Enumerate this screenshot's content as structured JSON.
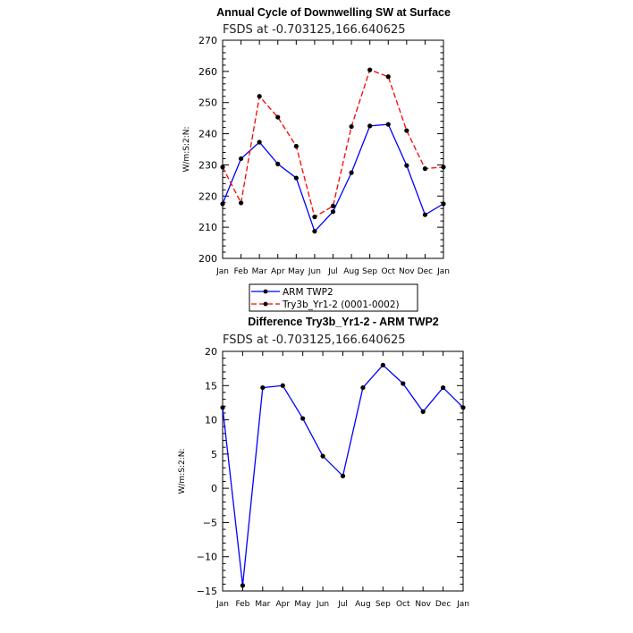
{
  "chart_data": [
    {
      "type": "line",
      "title": "Annual Cycle of Downwelling SW at Surface",
      "subtitle": "FSDS at -0.703125,166.640625",
      "xlabel": "",
      "ylabel": "W/m:S:2:N:",
      "ylim": [
        200,
        270
      ],
      "yticks": [
        200,
        210,
        220,
        230,
        240,
        250,
        260,
        270
      ],
      "categories": [
        "Jan",
        "Feb",
        "Mar",
        "Apr",
        "May",
        "Jun",
        "Jul",
        "Aug",
        "Sep",
        "Oct",
        "Nov",
        "Dec",
        "Jan"
      ],
      "series": [
        {
          "name": "ARM TWP2",
          "color": "#0000ff",
          "dash": "solid",
          "values": [
            217.5,
            232.0,
            237.3,
            230.3,
            225.8,
            208.7,
            215.0,
            227.5,
            242.5,
            243.0,
            229.8,
            214.0,
            217.5
          ]
        },
        {
          "name": "Try3b_Yr1-2 (0001-0002)",
          "color": "#ff0000",
          "dash": "dashed",
          "values": [
            229.3,
            217.8,
            252.0,
            245.3,
            236.0,
            213.3,
            216.8,
            242.3,
            260.5,
            258.3,
            241.0,
            228.8,
            229.3
          ]
        }
      ],
      "legend": {
        "position": "bottom-left",
        "entries": [
          "ARM TWP2",
          "Try3b_Yr1-2 (0001-0002)"
        ]
      }
    },
    {
      "type": "line",
      "title": "Difference Try3b_Yr1-2 - ARM TWP2",
      "subtitle": "FSDS at -0.703125,166.640625",
      "xlabel": "",
      "ylabel": "W/m:S:2:N:",
      "ylim": [
        -15,
        20
      ],
      "yticks": [
        -15,
        -10,
        -5,
        0,
        5,
        10,
        15,
        20
      ],
      "ytick_labels": [
        "−15",
        "−10",
        "−5",
        "0",
        "5",
        "10",
        "15",
        "20"
      ],
      "categories": [
        "Jan",
        "Feb",
        "Mar",
        "Apr",
        "May",
        "Jun",
        "Jul",
        "Aug",
        "Sep",
        "Oct",
        "Nov",
        "Dec",
        "Jan"
      ],
      "series": [
        {
          "name": "Difference",
          "color": "#0000ff",
          "dash": "solid",
          "values": [
            11.8,
            -14.2,
            14.7,
            15.0,
            10.2,
            4.7,
            1.8,
            14.7,
            18.0,
            15.3,
            11.2,
            14.7,
            11.8
          ]
        }
      ]
    }
  ]
}
